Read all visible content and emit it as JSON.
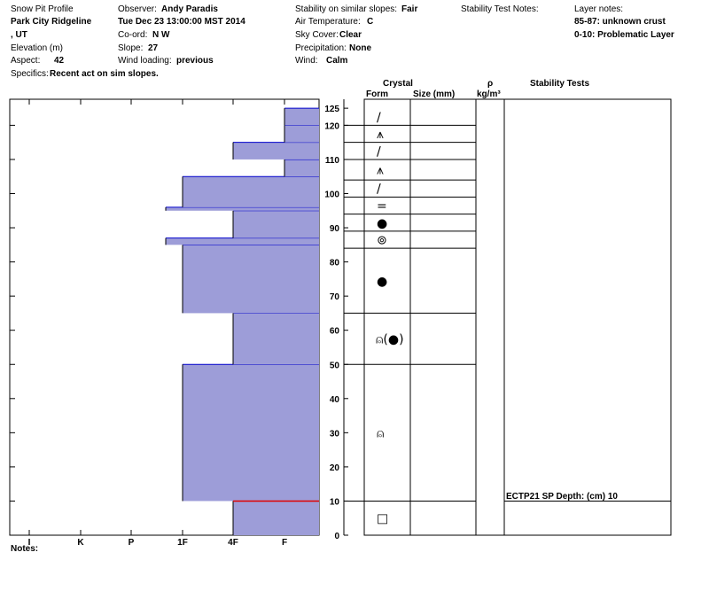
{
  "header": {
    "title": "Snow Pit Profile",
    "location": "Park City Ridgeline",
    "state": ", UT",
    "elevation_label": "Elevation (m)",
    "aspect_label": "Aspect:",
    "aspect_value": "42",
    "specifics_label": "Specifics:",
    "specifics_value": "Recent act on sim slopes.",
    "observer_label": "Observer:",
    "observer_value": "Andy Paradis",
    "datetime": "Tue Dec 23 13:00:00 MST 2014",
    "coord_label": "Co-ord:",
    "coord_value": "N W",
    "slope_label": "Slope:",
    "slope_value": "27",
    "wind_loading_label": "Wind loading:",
    "wind_loading_value": "previous",
    "stability_label": "Stability on similar slopes:",
    "stability_value": "Fair",
    "air_temp_label": "Air Temperature:",
    "air_temp_value": "C",
    "sky_label": "Sky Cover:",
    "sky_value": "Clear",
    "precip_label": "Precipitation:",
    "precip_value": "None",
    "wind_label": "Wind:",
    "wind_value": "Calm",
    "stability_notes_label": "Stability Test Notes:",
    "layer_notes_label": "Layer notes:",
    "layer_notes": [
      "85-87: unknown crust",
      "0-10: Problematic Layer"
    ]
  },
  "columns": {
    "crystal": "Crystal",
    "form": "Form",
    "size": "Size (mm)",
    "rho": "ρ",
    "density_unit": "kg/m³",
    "stability_tests": "Stability Tests"
  },
  "notes_label": "Notes:",
  "stability_test": {
    "depth": 10,
    "label": "ECTP21 SP Depth: (cm) 10"
  },
  "colors": {
    "fill": "#9d9dd8",
    "edge": "#0000cc",
    "problem": "#e00000"
  },
  "chart_data": {
    "type": "bar",
    "x_categories": [
      "I",
      "K",
      "P",
      "1F",
      "4F",
      "F"
    ],
    "y_ticks": [
      0,
      10,
      20,
      30,
      40,
      50,
      60,
      70,
      80,
      90,
      100,
      110,
      120,
      125
    ],
    "ylim": [
      0,
      126
    ],
    "xlabel": "",
    "ylabel": "",
    "grid": false,
    "layers": [
      {
        "bottom": 0,
        "top": 10,
        "hardness": "4F"
      },
      {
        "bottom": 10,
        "top": 50,
        "hardness": "1F"
      },
      {
        "bottom": 50,
        "top": 65,
        "hardness": "4F"
      },
      {
        "bottom": 65,
        "top": 85,
        "hardness": "1F"
      },
      {
        "bottom": 85,
        "top": 87,
        "hardness": "1F-"
      },
      {
        "bottom": 87,
        "top": 95,
        "hardness": "4F"
      },
      {
        "bottom": 95,
        "top": 96,
        "hardness": "1F-"
      },
      {
        "bottom": 96,
        "top": 105,
        "hardness": "1F"
      },
      {
        "bottom": 105,
        "top": 110,
        "hardness": "F"
      },
      {
        "bottom": 110,
        "top": 115,
        "hardness": "4F"
      },
      {
        "bottom": 115,
        "top": 120,
        "hardness": "F"
      },
      {
        "bottom": 120,
        "top": 125,
        "hardness": "F"
      }
    ],
    "problem_layer_depth": 10,
    "form_layers": [
      {
        "bottom": 0,
        "top": 10,
        "form": "□"
      },
      {
        "bottom": 10,
        "top": 50,
        "form": "⍝"
      },
      {
        "bottom": 50,
        "top": 65,
        "form": "⍝(●)"
      },
      {
        "bottom": 65,
        "top": 84,
        "form": "●"
      },
      {
        "bottom": 84,
        "top": 89,
        "form": "⊚"
      },
      {
        "bottom": 89,
        "top": 94,
        "form": "●"
      },
      {
        "bottom": 94,
        "top": 99,
        "form": "="
      },
      {
        "bottom": 99,
        "top": 104,
        "form": "/"
      },
      {
        "bottom": 104,
        "top": 110,
        "form": "⩚"
      },
      {
        "bottom": 110,
        "top": 115,
        "form": "/"
      },
      {
        "bottom": 115,
        "top": 120,
        "form": "⩚"
      },
      {
        "bottom": 120,
        "top": 125,
        "form": "/"
      }
    ]
  }
}
